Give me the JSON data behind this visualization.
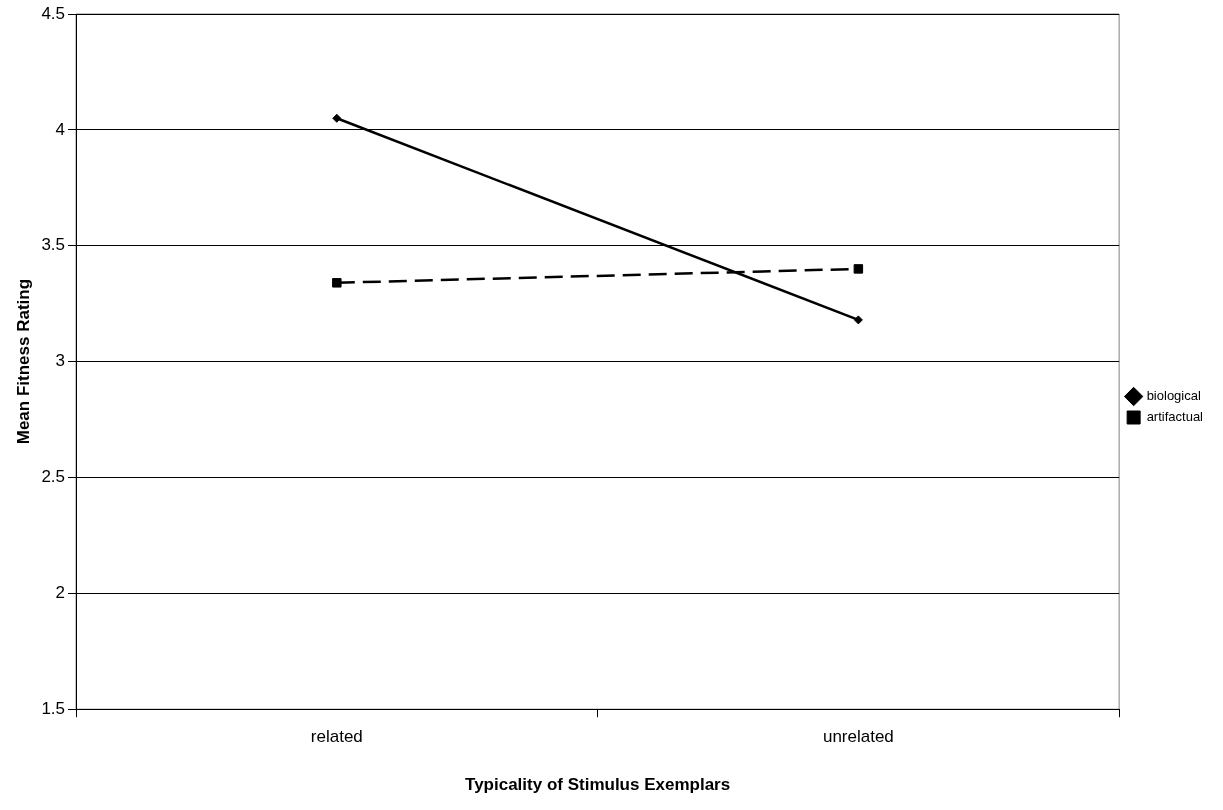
{
  "chart_data": {
    "type": "line",
    "xlabel": "Typicality of Stimulus Exemplars",
    "ylabel": "Mean Fitness Rating",
    "categories": [
      "related",
      "unrelated"
    ],
    "series": [
      {
        "name": "biological",
        "color": "#000000",
        "values": [
          4.05,
          3.18
        ],
        "marker": "diamond",
        "line_style": "solid"
      },
      {
        "name": "artifactual",
        "color": "#000000",
        "values": [
          3.34,
          3.4
        ],
        "marker": "square",
        "line_style": "dashed"
      }
    ],
    "ylim": [
      1.5,
      4.5
    ],
    "yticks": [
      1.5,
      2,
      2.5,
      3,
      3.5,
      4,
      4.5
    ],
    "grid": "y",
    "legend": "right"
  }
}
